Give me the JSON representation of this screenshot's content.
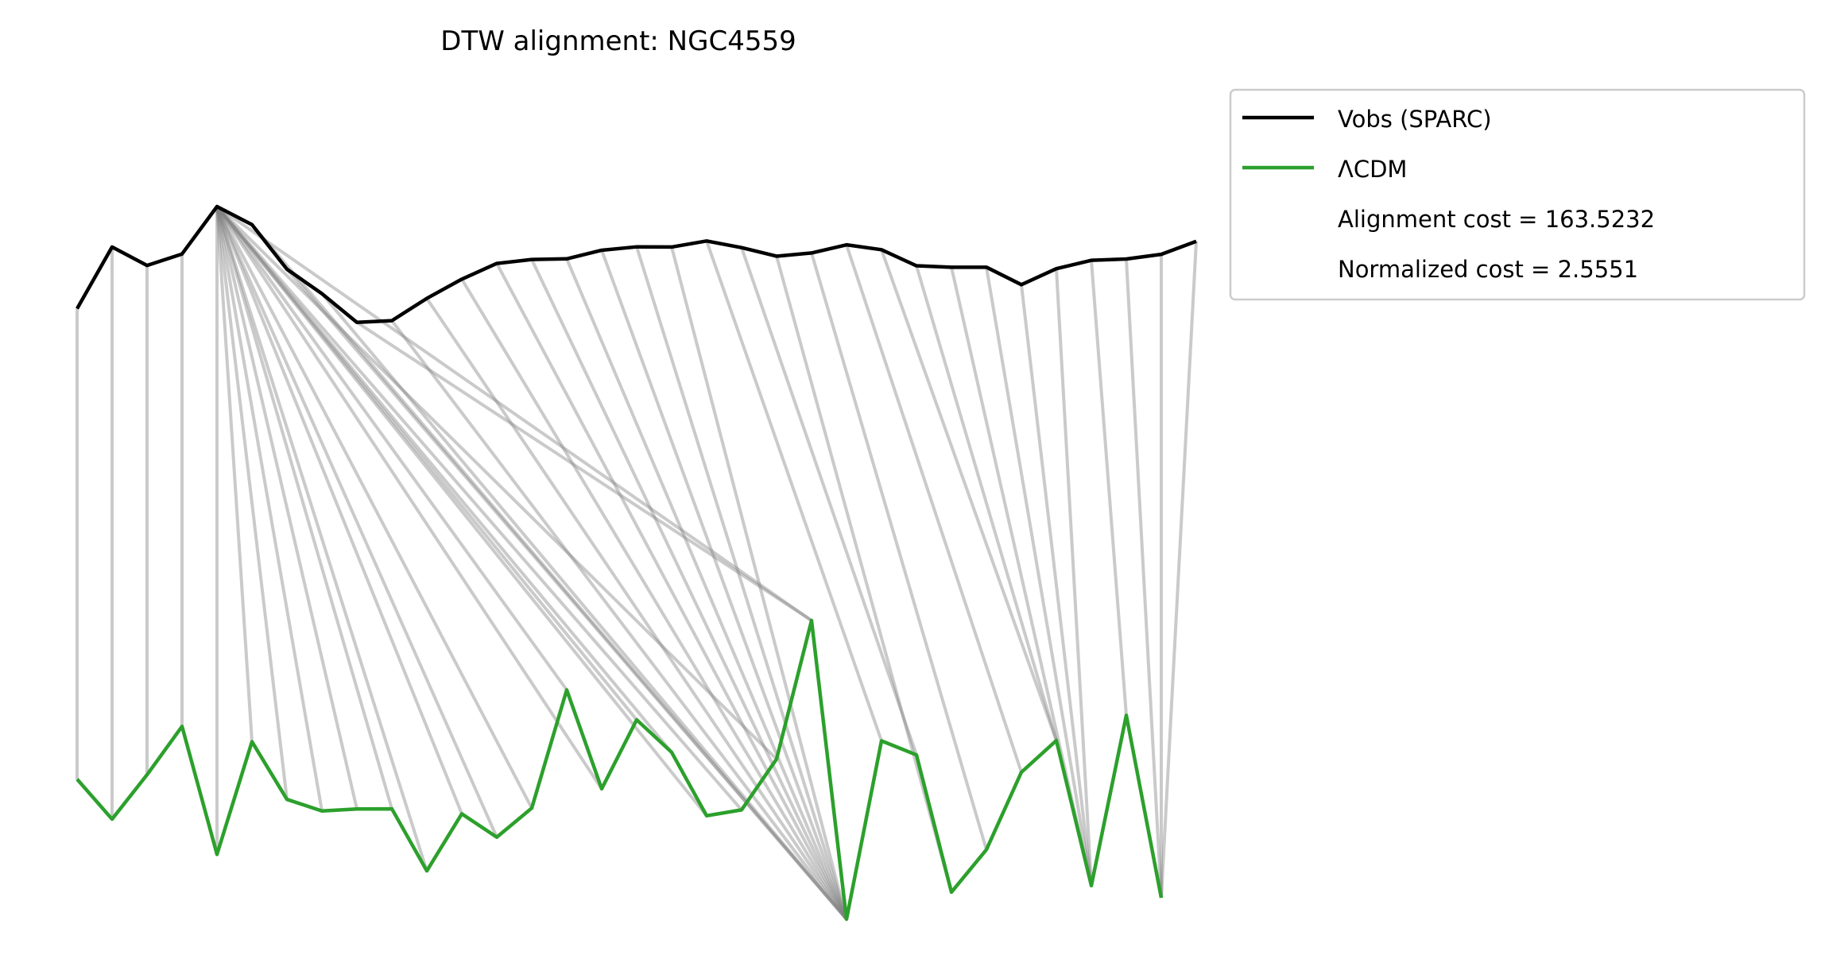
{
  "chart_data": {
    "type": "line",
    "title": "DTW alignment: NGC4559",
    "xlabel": "",
    "ylabel": "",
    "axes_visible": false,
    "grid": false,
    "legend_placement": "outside-top-right",
    "colors": {
      "observed": "#000000",
      "model": "#2ca02c",
      "connection": "#808080"
    },
    "series": [
      {
        "name": "Vobs (SPARC)",
        "values": [
          0.6914,
          0.7619,
          0.7408,
          0.7539,
          0.8082,
          0.7875,
          0.7365,
          0.7085,
          0.6757,
          0.6776,
          0.7031,
          0.7251,
          0.7431,
          0.7476,
          0.7484,
          0.7582,
          0.7621,
          0.7619,
          0.7688,
          0.7612,
          0.7514,
          0.7551,
          0.7644,
          0.7588,
          0.7404,
          0.7388,
          0.7388,
          0.7188,
          0.7371,
          0.7467,
          0.7482,
          0.7535,
          0.7684
        ]
      },
      {
        "name": "ΛCDM",
        "values": [
          0.1602,
          0.1145,
          0.1653,
          0.2206,
          0.0742,
          0.2031,
          0.1371,
          0.1239,
          0.1261,
          0.1263,
          0.0553,
          0.1206,
          0.0939,
          0.1271,
          0.2624,
          0.1492,
          0.2282,
          0.191,
          0.1184,
          0.1251,
          0.1833,
          0.3418,
          0.0,
          0.2041,
          0.188,
          0.031,
          0.0796,
          0.1682,
          0.2045,
          0.0384,
          0.2333,
          0.0245
        ]
      }
    ],
    "alignment_path": [
      [
        0,
        0
      ],
      [
        1,
        1
      ],
      [
        2,
        2
      ],
      [
        3,
        3
      ],
      [
        4,
        4
      ],
      [
        4,
        5
      ],
      [
        4,
        6
      ],
      [
        4,
        7
      ],
      [
        4,
        8
      ],
      [
        4,
        9
      ],
      [
        4,
        10
      ],
      [
        4,
        11
      ],
      [
        4,
        12
      ],
      [
        4,
        13
      ],
      [
        4,
        14
      ],
      [
        4,
        15
      ],
      [
        4,
        16
      ],
      [
        4,
        17
      ],
      [
        4,
        18
      ],
      [
        4,
        19
      ],
      [
        4,
        20
      ],
      [
        4,
        21
      ],
      [
        5,
        22
      ],
      [
        6,
        22
      ],
      [
        7,
        22
      ],
      [
        8,
        21
      ],
      [
        9,
        22
      ],
      [
        10,
        22
      ],
      [
        11,
        22
      ],
      [
        12,
        22
      ],
      [
        13,
        22
      ],
      [
        14,
        22
      ],
      [
        15,
        22
      ],
      [
        16,
        22
      ],
      [
        17,
        22
      ],
      [
        18,
        23
      ],
      [
        19,
        24
      ],
      [
        20,
        25
      ],
      [
        21,
        26
      ],
      [
        22,
        27
      ],
      [
        23,
        28
      ],
      [
        24,
        28
      ],
      [
        25,
        29
      ],
      [
        26,
        29
      ],
      [
        27,
        29
      ],
      [
        28,
        29
      ],
      [
        29,
        30
      ],
      [
        30,
        31
      ],
      [
        31,
        31
      ],
      [
        32,
        31
      ]
    ],
    "legend": [
      {
        "label": "Vobs (SPARC)",
        "color": "#000000",
        "line": true
      },
      {
        "label": "ΛCDM",
        "color": "#2ca02c",
        "line": true
      },
      {
        "label": "Alignment cost = 163.5232",
        "line": false
      },
      {
        "label": "Normalized cost = 2.5551",
        "line": false
      }
    ]
  }
}
